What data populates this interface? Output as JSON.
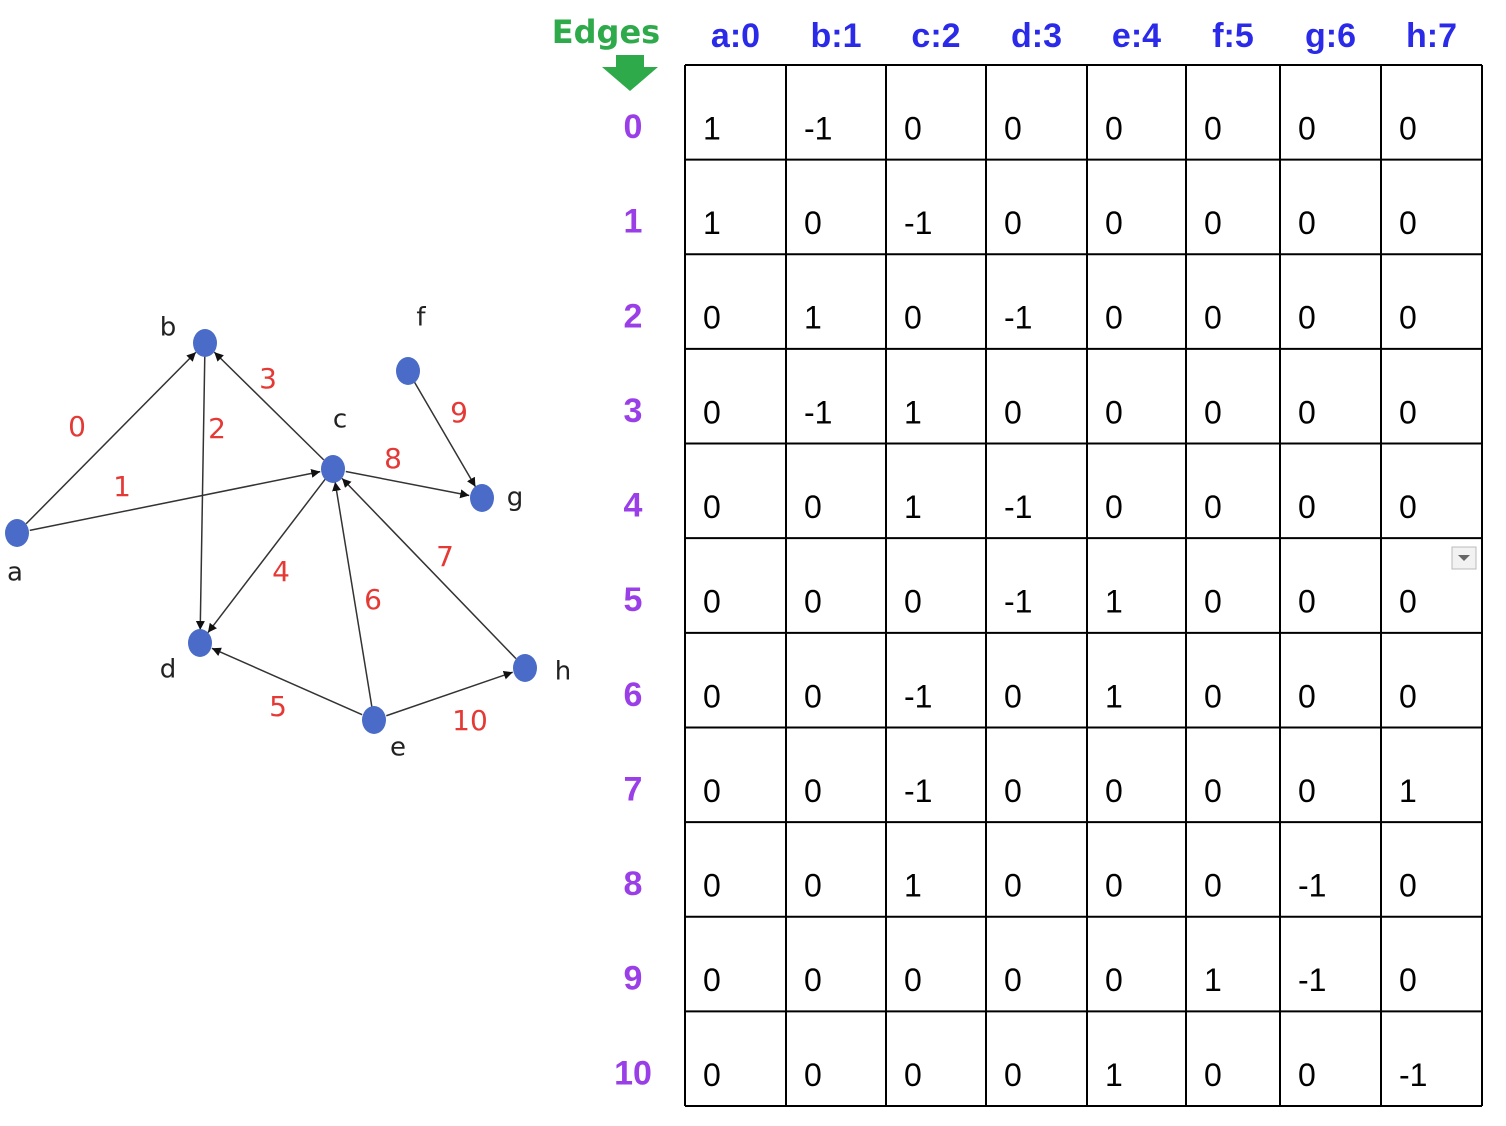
{
  "graph": {
    "nodes": [
      {
        "label": "a"
      },
      {
        "label": "b"
      },
      {
        "label": "c"
      },
      {
        "label": "d"
      },
      {
        "label": "e"
      },
      {
        "label": "f"
      },
      {
        "label": "g"
      },
      {
        "label": "h"
      }
    ],
    "edges": [
      {
        "label": "0"
      },
      {
        "label": "1"
      },
      {
        "label": "2"
      },
      {
        "label": "3"
      },
      {
        "label": "4"
      },
      {
        "label": "5"
      },
      {
        "label": "6"
      },
      {
        "label": "7"
      },
      {
        "label": "8"
      },
      {
        "label": "9"
      },
      {
        "label": "10"
      }
    ]
  },
  "table": {
    "corner": "Edges",
    "columns": [
      "a:0",
      "b:1",
      "c:2",
      "d:3",
      "e:4",
      "f:5",
      "g:6",
      "h:7"
    ],
    "row_labels": [
      "0",
      "1",
      "2",
      "3",
      "4",
      "5",
      "6",
      "7",
      "8",
      "9",
      "10"
    ],
    "rows": [
      [
        1,
        -1,
        0,
        0,
        0,
        0,
        0,
        0
      ],
      [
        1,
        0,
        -1,
        0,
        0,
        0,
        0,
        0
      ],
      [
        0,
        1,
        0,
        -1,
        0,
        0,
        0,
        0
      ],
      [
        0,
        -1,
        1,
        0,
        0,
        0,
        0,
        0
      ],
      [
        0,
        0,
        1,
        -1,
        0,
        0,
        0,
        0
      ],
      [
        0,
        0,
        0,
        -1,
        1,
        0,
        0,
        0
      ],
      [
        0,
        0,
        -1,
        0,
        1,
        0,
        0,
        0
      ],
      [
        0,
        0,
        -1,
        0,
        0,
        0,
        0,
        1
      ],
      [
        0,
        0,
        1,
        0,
        0,
        0,
        -1,
        0
      ],
      [
        0,
        0,
        0,
        0,
        0,
        1,
        -1,
        0
      ],
      [
        0,
        0,
        0,
        0,
        1,
        0,
        0,
        -1
      ]
    ]
  }
}
